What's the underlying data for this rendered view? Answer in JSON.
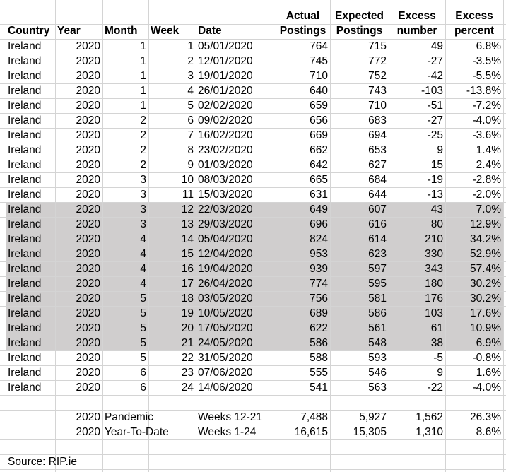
{
  "columns": [
    [
      "Country"
    ],
    [
      "Year"
    ],
    [
      "Month"
    ],
    [
      "Week"
    ],
    [
      "Date"
    ],
    [
      "Actual",
      "Postings"
    ],
    [
      "Expected",
      "Postings"
    ],
    [
      "Excess",
      "number"
    ],
    [
      "Excess",
      "percent"
    ]
  ],
  "rows": [
    {
      "cells": [
        "Ireland",
        "2020",
        "1",
        "1",
        "05/01/2020",
        "764",
        "715",
        "49",
        "6.8%"
      ],
      "highlighted": false
    },
    {
      "cells": [
        "Ireland",
        "2020",
        "1",
        "2",
        "12/01/2020",
        "745",
        "772",
        "-27",
        "-3.5%"
      ],
      "highlighted": false
    },
    {
      "cells": [
        "Ireland",
        "2020",
        "1",
        "3",
        "19/01/2020",
        "710",
        "752",
        "-42",
        "-5.5%"
      ],
      "highlighted": false
    },
    {
      "cells": [
        "Ireland",
        "2020",
        "1",
        "4",
        "26/01/2020",
        "640",
        "743",
        "-103",
        "-13.8%"
      ],
      "highlighted": false
    },
    {
      "cells": [
        "Ireland",
        "2020",
        "1",
        "5",
        "02/02/2020",
        "659",
        "710",
        "-51",
        "-7.2%"
      ],
      "highlighted": false
    },
    {
      "cells": [
        "Ireland",
        "2020",
        "2",
        "6",
        "09/02/2020",
        "656",
        "683",
        "-27",
        "-4.0%"
      ],
      "highlighted": false
    },
    {
      "cells": [
        "Ireland",
        "2020",
        "2",
        "7",
        "16/02/2020",
        "669",
        "694",
        "-25",
        "-3.6%"
      ],
      "highlighted": false
    },
    {
      "cells": [
        "Ireland",
        "2020",
        "2",
        "8",
        "23/02/2020",
        "662",
        "653",
        "9",
        "1.4%"
      ],
      "highlighted": false
    },
    {
      "cells": [
        "Ireland",
        "2020",
        "2",
        "9",
        "01/03/2020",
        "642",
        "627",
        "15",
        "2.4%"
      ],
      "highlighted": false
    },
    {
      "cells": [
        "Ireland",
        "2020",
        "3",
        "10",
        "08/03/2020",
        "665",
        "684",
        "-19",
        "-2.8%"
      ],
      "highlighted": false
    },
    {
      "cells": [
        "Ireland",
        "2020",
        "3",
        "11",
        "15/03/2020",
        "631",
        "644",
        "-13",
        "-2.0%"
      ],
      "highlighted": false
    },
    {
      "cells": [
        "Ireland",
        "2020",
        "3",
        "12",
        "22/03/2020",
        "649",
        "607",
        "43",
        "7.0%"
      ],
      "highlighted": true
    },
    {
      "cells": [
        "Ireland",
        "2020",
        "3",
        "13",
        "29/03/2020",
        "696",
        "616",
        "80",
        "12.9%"
      ],
      "highlighted": true
    },
    {
      "cells": [
        "Ireland",
        "2020",
        "4",
        "14",
        "05/04/2020",
        "824",
        "614",
        "210",
        "34.2%"
      ],
      "highlighted": true
    },
    {
      "cells": [
        "Ireland",
        "2020",
        "4",
        "15",
        "12/04/2020",
        "953",
        "623",
        "330",
        "52.9%"
      ],
      "highlighted": true
    },
    {
      "cells": [
        "Ireland",
        "2020",
        "4",
        "16",
        "19/04/2020",
        "939",
        "597",
        "343",
        "57.4%"
      ],
      "highlighted": true
    },
    {
      "cells": [
        "Ireland",
        "2020",
        "4",
        "17",
        "26/04/2020",
        "774",
        "595",
        "180",
        "30.2%"
      ],
      "highlighted": true
    },
    {
      "cells": [
        "Ireland",
        "2020",
        "5",
        "18",
        "03/05/2020",
        "756",
        "581",
        "176",
        "30.2%"
      ],
      "highlighted": true
    },
    {
      "cells": [
        "Ireland",
        "2020",
        "5",
        "19",
        "10/05/2020",
        "689",
        "586",
        "103",
        "17.6%"
      ],
      "highlighted": true
    },
    {
      "cells": [
        "Ireland",
        "2020",
        "5",
        "20",
        "17/05/2020",
        "622",
        "561",
        "61",
        "10.9%"
      ],
      "highlighted": true
    },
    {
      "cells": [
        "Ireland",
        "2020",
        "5",
        "21",
        "24/05/2020",
        "586",
        "548",
        "38",
        "6.9%"
      ],
      "highlighted": true
    },
    {
      "cells": [
        "Ireland",
        "2020",
        "5",
        "22",
        "31/05/2020",
        "588",
        "593",
        "-5",
        "-0.8%"
      ],
      "highlighted": false
    },
    {
      "cells": [
        "Ireland",
        "2020",
        "6",
        "23",
        "07/06/2020",
        "555",
        "546",
        "9",
        "1.6%"
      ],
      "highlighted": false
    },
    {
      "cells": [
        "Ireland",
        "2020",
        "6",
        "24",
        "14/06/2020",
        "541",
        "563",
        "-22",
        "-4.0%"
      ],
      "highlighted": false
    }
  ],
  "summary": [
    {
      "year": "2020",
      "label": "Pandemic",
      "weeks": "Weeks 12-21",
      "actual": "7,488",
      "expected": "5,927",
      "number": "1,562",
      "percent": "26.3%"
    },
    {
      "year": "2020",
      "label": "Year-To-Date",
      "weeks": "Weeks 1-24",
      "actual": "16,615",
      "expected": "15,305",
      "number": "1,310",
      "percent": "8.6%"
    }
  ],
  "source": "Source: RIP.ie"
}
